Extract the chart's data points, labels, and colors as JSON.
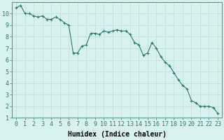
{
  "x": [
    0,
    0.5,
    1,
    1.5,
    2,
    2.5,
    3,
    3.5,
    4,
    4.5,
    5,
    5.5,
    6,
    6.5,
    7,
    7.5,
    8,
    8.5,
    9,
    9.5,
    10,
    10.5,
    11,
    11.5,
    12,
    12.5,
    13,
    13.5,
    14,
    14.5,
    15,
    15.5,
    16,
    16.5,
    17,
    17.5,
    18,
    18.5,
    19,
    19.5,
    20,
    20.5,
    21,
    21.5,
    22,
    22.5,
    23
  ],
  "y": [
    10.5,
    10.7,
    10.0,
    10.0,
    9.8,
    9.7,
    9.8,
    9.5,
    9.5,
    9.7,
    9.5,
    9.2,
    9.0,
    6.6,
    6.6,
    7.2,
    7.3,
    8.3,
    8.3,
    8.2,
    8.5,
    8.4,
    8.5,
    8.6,
    8.5,
    8.5,
    8.2,
    7.5,
    7.3,
    6.4,
    6.6,
    7.5,
    7.0,
    6.3,
    5.8,
    5.5,
    4.9,
    4.3,
    3.8,
    3.5,
    2.5,
    2.3,
    2.0,
    2.0,
    2.0,
    1.9,
    1.4
  ],
  "line_color": "#2d7d6e",
  "marker_color": "#2d7d6e",
  "bg_color": "#d8f0ee",
  "grid_color": "#c0dcd8",
  "xlabel": "Humidex (Indice chaleur)",
  "xlim": [
    -0.5,
    23.5
  ],
  "ylim": [
    1,
    11
  ],
  "xticks": [
    0,
    1,
    2,
    3,
    4,
    5,
    6,
    7,
    8,
    9,
    10,
    11,
    12,
    13,
    14,
    15,
    16,
    17,
    18,
    19,
    20,
    21,
    22,
    23
  ],
  "yticks": [
    1,
    2,
    3,
    4,
    5,
    6,
    7,
    8,
    9,
    10
  ],
  "tick_fontsize": 6,
  "label_fontsize": 7
}
